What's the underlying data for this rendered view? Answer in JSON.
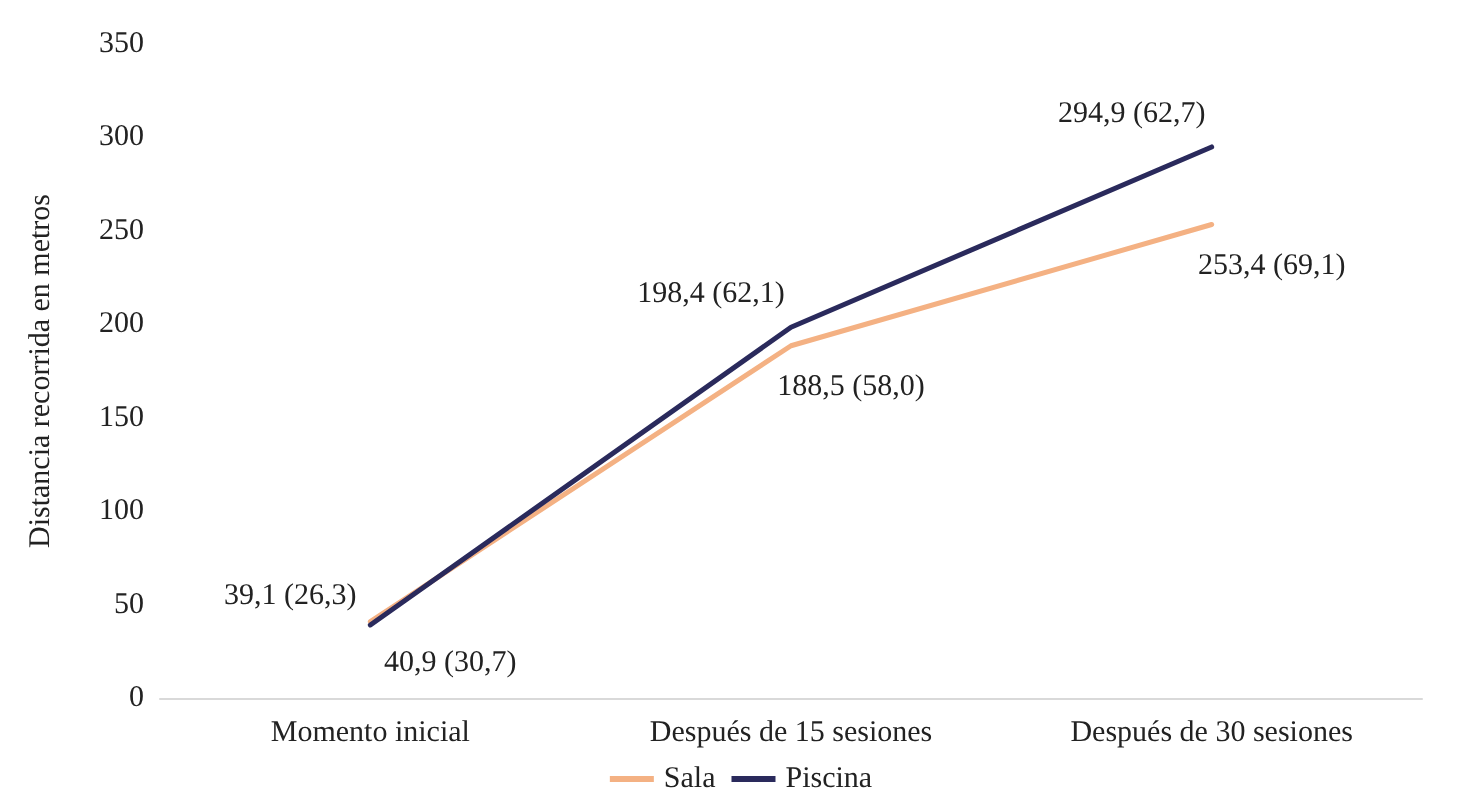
{
  "chart_data": {
    "type": "line",
    "ylabel": "Distancia recorrida en metros",
    "categories": [
      "Momento inicial",
      "Después de 15 sesiones",
      "Después de 30 sesiones"
    ],
    "series": [
      {
        "name": "Sala",
        "color": "#f4b183",
        "values": [
          40.9,
          188.5,
          253.4
        ],
        "value_labels": [
          "40,9 (30,7)",
          "188,5 (58,0)",
          "253,4 (69,1)"
        ]
      },
      {
        "name": "Piscina",
        "color": "#2a2a5c",
        "values": [
          39.1,
          198.4,
          294.9
        ],
        "value_labels": [
          "39,1 (26,3)",
          "198,4 (62,1)",
          "294,9 (62,7)"
        ]
      }
    ],
    "ylim": [
      0,
      350
    ],
    "yticks": [
      0,
      50,
      100,
      150,
      200,
      250,
      300,
      350
    ],
    "grid": false,
    "legend": "bottom",
    "marker": "none",
    "line_style": "solid"
  }
}
